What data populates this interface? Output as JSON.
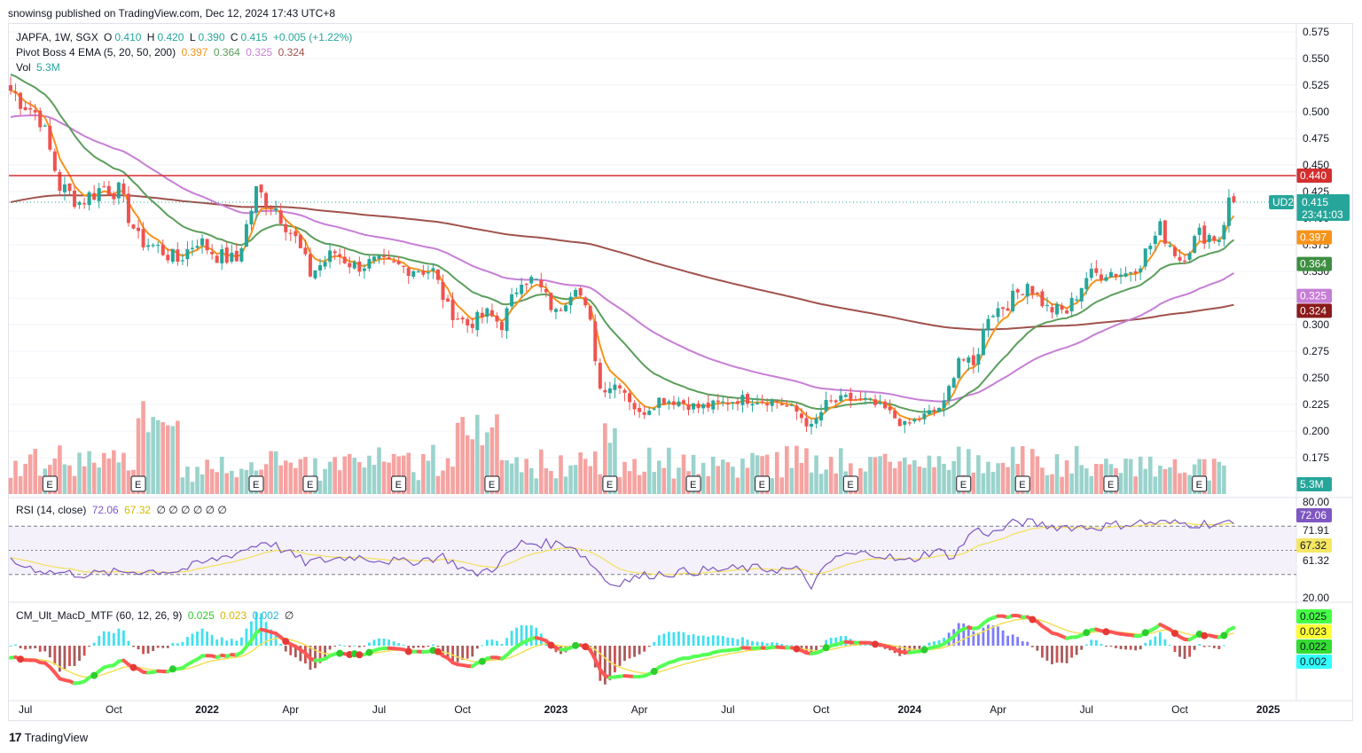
{
  "header": {
    "published": "snowinsg published on TradingView.com, Dec 12, 2024 17:43 UTC+8"
  },
  "legend": {
    "symbol": {
      "title": "JAPFA, 1W, SGX",
      "o_label": "O",
      "o": "0.410",
      "h_label": "H",
      "h": "0.420",
      "l_label": "L",
      "l": "0.390",
      "c_label": "C",
      "c": "0.415",
      "change": "+0.005 (+1.22%)"
    },
    "ema": {
      "title": "Pivot Boss 4 EMA (5, 20, 50, 200)",
      "v1": "0.397",
      "v2": "0.364",
      "v3": "0.325",
      "v4": "0.324"
    },
    "vol": {
      "title": "Vol",
      "value": "5.3M"
    },
    "rsi": {
      "title": "RSI (14, close)",
      "v1": "72.06",
      "v2": "67.32",
      "rest": "∅ ∅ ∅ ∅ ∅ ∅"
    },
    "macd": {
      "title": "CM_Ult_MacD_MTF (60, 12, 26, 9)",
      "v1": "0.025",
      "v2": "0.023",
      "v3": "0.002",
      "rest": "∅"
    }
  },
  "colors": {
    "up": "#26a69a",
    "down": "#ef5350",
    "ema5": "#f7931a",
    "ema20": "#5b9e5b",
    "ema50": "#c77ed6",
    "ema200": "#a0524c",
    "resistance": "#d32f2f",
    "rsi": "#7e57c2",
    "rsi_ma": "#f3e05a",
    "macd_up": "#55ff55",
    "macd_down": "#ff5555"
  },
  "chart_data": [
    {
      "type": "candlestick",
      "title": "JAPFA, 1W, SGX",
      "x_ticks": [
        "Jul",
        "Oct",
        "2022",
        "Apr",
        "Jul",
        "Oct",
        "2023",
        "Apr",
        "Jul",
        "Oct",
        "2024",
        "Apr",
        "Jul",
        "Oct",
        "2025"
      ],
      "y_ticks": [
        "0.575",
        "0.550",
        "0.525",
        "0.500",
        "0.475",
        "0.450",
        "0.425",
        "0.400",
        "0.375",
        "0.350",
        "0.325",
        "0.300",
        "0.275",
        "0.250",
        "0.225",
        "0.200",
        "0.175"
      ],
      "ylim": [
        0.15,
        0.585
      ],
      "close_anchors": [
        [
          0,
          0.52
        ],
        [
          6,
          0.495
        ],
        [
          10,
          0.43
        ],
        [
          14,
          0.415
        ],
        [
          19,
          0.43
        ],
        [
          22,
          0.425
        ],
        [
          26,
          0.38
        ],
        [
          30,
          0.372
        ],
        [
          34,
          0.36
        ],
        [
          38,
          0.38
        ],
        [
          42,
          0.365
        ],
        [
          46,
          0.36
        ],
        [
          50,
          0.425
        ],
        [
          54,
          0.41
        ],
        [
          58,
          0.38
        ],
        [
          61,
          0.348
        ],
        [
          66,
          0.368
        ],
        [
          70,
          0.355
        ],
        [
          74,
          0.358
        ],
        [
          78,
          0.355
        ],
        [
          82,
          0.353
        ],
        [
          86,
          0.35
        ],
        [
          89,
          0.315
        ],
        [
          93,
          0.3
        ],
        [
          97,
          0.31
        ],
        [
          100,
          0.3
        ],
        [
          104,
          0.345
        ],
        [
          107,
          0.34
        ],
        [
          111,
          0.31
        ],
        [
          115,
          0.34
        ],
        [
          118,
          0.3
        ],
        [
          120,
          0.24
        ],
        [
          124,
          0.245
        ],
        [
          128,
          0.215
        ],
        [
          132,
          0.23
        ],
        [
          136,
          0.228
        ],
        [
          140,
          0.222
        ],
        [
          144,
          0.225
        ],
        [
          148,
          0.23
        ],
        [
          152,
          0.23
        ],
        [
          156,
          0.228
        ],
        [
          160,
          0.218
        ],
        [
          163,
          0.203
        ],
        [
          166,
          0.225
        ],
        [
          170,
          0.23
        ],
        [
          174,
          0.228
        ],
        [
          178,
          0.22
        ],
        [
          182,
          0.205
        ],
        [
          186,
          0.214
        ],
        [
          190,
          0.225
        ],
        [
          193,
          0.27
        ],
        [
          196,
          0.26
        ],
        [
          199,
          0.31
        ],
        [
          203,
          0.32
        ],
        [
          207,
          0.34
        ],
        [
          211,
          0.315
        ],
        [
          215,
          0.312
        ],
        [
          219,
          0.345
        ],
        [
          223,
          0.35
        ],
        [
          227,
          0.348
        ],
        [
          230,
          0.36
        ],
        [
          234,
          0.39
        ],
        [
          238,
          0.362
        ],
        [
          242,
          0.385
        ],
        [
          246,
          0.382
        ],
        [
          248,
          0.415
        ]
      ],
      "resistance_line": 0.44,
      "last_price": "0.415",
      "countdown": "23:41:03",
      "ud_tag": "UD2",
      "ema_labels": [
        "0.397",
        "0.364",
        "0.325",
        "0.324"
      ],
      "earnings_markers": [
        "E",
        "E",
        "E",
        "E",
        "E",
        "E",
        "E",
        "E",
        "E",
        "E",
        "E",
        "E",
        "E",
        "E"
      ],
      "volume_label": "5.3M"
    },
    {
      "type": "line",
      "title": "RSI (14, close)",
      "y_ticks": [
        "80.00",
        "20.00"
      ],
      "bands": [
        70,
        30
      ],
      "rsi_anchors": [
        [
          0,
          40
        ],
        [
          8,
          32
        ],
        [
          16,
          30
        ],
        [
          26,
          33
        ],
        [
          34,
          33
        ],
        [
          46,
          48
        ],
        [
          52,
          58
        ],
        [
          60,
          40
        ],
        [
          70,
          45
        ],
        [
          80,
          40
        ],
        [
          88,
          45
        ],
        [
          94,
          30
        ],
        [
          98,
          35
        ],
        [
          104,
          56
        ],
        [
          114,
          55
        ],
        [
          118,
          40
        ],
        [
          122,
          22
        ],
        [
          130,
          30
        ],
        [
          140,
          33
        ],
        [
          150,
          35
        ],
        [
          160,
          34
        ],
        [
          163,
          21
        ],
        [
          168,
          45
        ],
        [
          176,
          48
        ],
        [
          182,
          40
        ],
        [
          188,
          50
        ],
        [
          192,
          45
        ],
        [
          196,
          67
        ],
        [
          200,
          64
        ],
        [
          205,
          74
        ],
        [
          212,
          70
        ],
        [
          220,
          69
        ],
        [
          230,
          73
        ],
        [
          240,
          72
        ],
        [
          248,
          72.06
        ]
      ],
      "labels": [
        "72.06",
        "71.91",
        "67.32",
        "61.32"
      ]
    },
    {
      "type": "line",
      "title": "CM_Ult_MacD_MTF (60, 12, 26, 9)",
      "labels": [
        "0.025",
        "0.023",
        "0.022",
        "0.002"
      ]
    }
  ],
  "footer": {
    "brand": "TradingView"
  }
}
